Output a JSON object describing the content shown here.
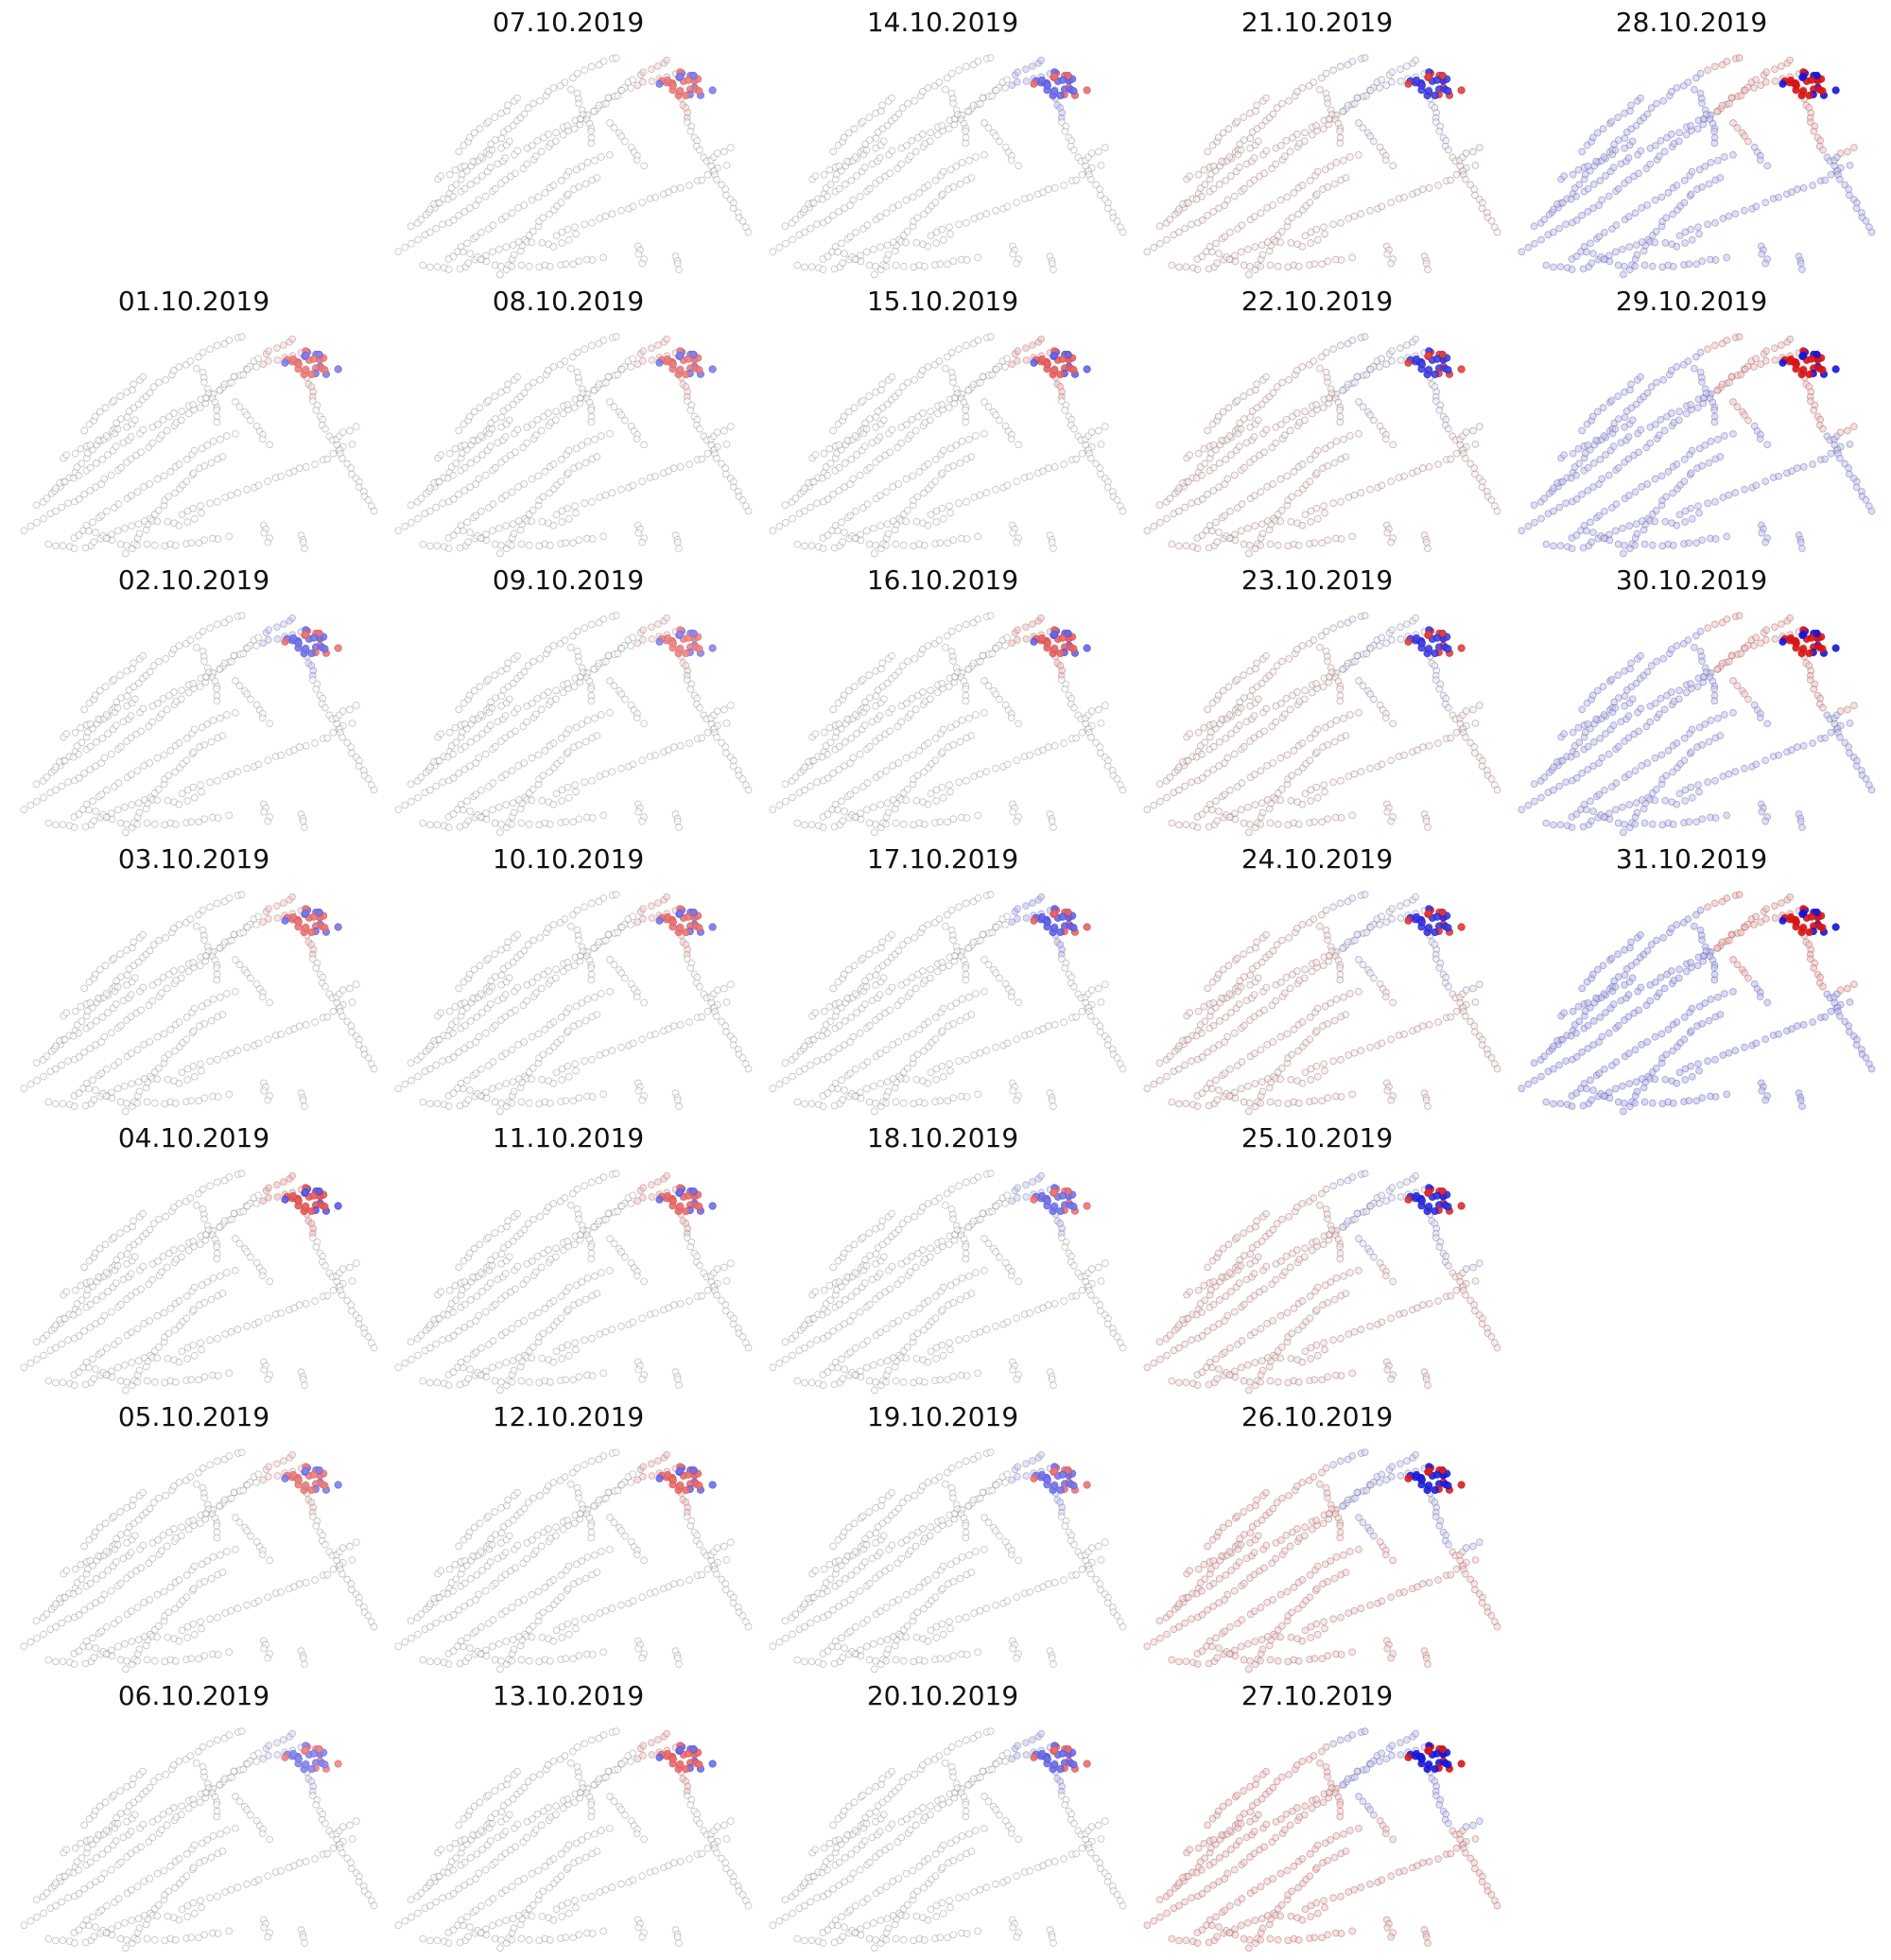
{
  "chart_data": {
    "type": "scatter",
    "layout": "small-multiples",
    "colormap": {
      "negative": "#1515d6",
      "neutral": "#ffffff",
      "positive": "#d61515",
      "outline": "#9a9a9a"
    },
    "grid": false,
    "axes_visible": false,
    "panels": [
      {
        "title": "01.10.2019",
        "intensity": 0.25,
        "hot": "red"
      },
      {
        "title": "02.10.2019",
        "intensity": 0.3,
        "hot": "blue"
      },
      {
        "title": "03.10.2019",
        "intensity": 0.3,
        "hot": "red"
      },
      {
        "title": "04.10.2019",
        "intensity": 0.45,
        "hot": "red"
      },
      {
        "title": "05.10.2019",
        "intensity": 0.25,
        "hot": "red"
      },
      {
        "title": "06.10.2019",
        "intensity": 0.2,
        "hot": "blue"
      },
      {
        "title": "07.10.2019",
        "intensity": 0.25,
        "hot": "red"
      },
      {
        "title": "08.10.2019",
        "intensity": 0.25,
        "hot": "red"
      },
      {
        "title": "09.10.2019",
        "intensity": 0.2,
        "hot": "red"
      },
      {
        "title": "10.10.2019",
        "intensity": 0.3,
        "hot": "red"
      },
      {
        "title": "11.10.2019",
        "intensity": 0.35,
        "hot": "red"
      },
      {
        "title": "12.10.2019",
        "intensity": 0.35,
        "hot": "red"
      },
      {
        "title": "13.10.2019",
        "intensity": 0.35,
        "hot": "red"
      },
      {
        "title": "14.10.2019",
        "intensity": 0.35,
        "hot": "blue"
      },
      {
        "title": "15.10.2019",
        "intensity": 0.4,
        "hot": "red"
      },
      {
        "title": "16.10.2019",
        "intensity": 0.4,
        "hot": "red"
      },
      {
        "title": "17.10.2019",
        "intensity": 0.4,
        "hot": "blue"
      },
      {
        "title": "18.10.2019",
        "intensity": 0.3,
        "hot": "blue"
      },
      {
        "title": "19.10.2019",
        "intensity": 0.3,
        "hot": "blue"
      },
      {
        "title": "20.10.2019",
        "intensity": 0.35,
        "hot": "blue"
      },
      {
        "title": "21.10.2019",
        "intensity": 0.6,
        "hot": "blue"
      },
      {
        "title": "22.10.2019",
        "intensity": 0.6,
        "hot": "blue"
      },
      {
        "title": "23.10.2019",
        "intensity": 0.6,
        "hot": "blue"
      },
      {
        "title": "24.10.2019",
        "intensity": 0.65,
        "hot": "blue"
      },
      {
        "title": "25.10.2019",
        "intensity": 0.7,
        "hot": "blue"
      },
      {
        "title": "26.10.2019",
        "intensity": 0.8,
        "hot": "blue"
      },
      {
        "title": "27.10.2019",
        "intensity": 0.85,
        "hot": "blue"
      },
      {
        "title": "28.10.2019",
        "intensity": 0.9,
        "hot": "red"
      },
      {
        "title": "29.10.2019",
        "intensity": 0.9,
        "hot": "red"
      },
      {
        "title": "30.10.2019",
        "intensity": 0.9,
        "hot": "red"
      },
      {
        "title": "31.10.2019",
        "intensity": 1.0,
        "hot": "red"
      }
    ]
  }
}
